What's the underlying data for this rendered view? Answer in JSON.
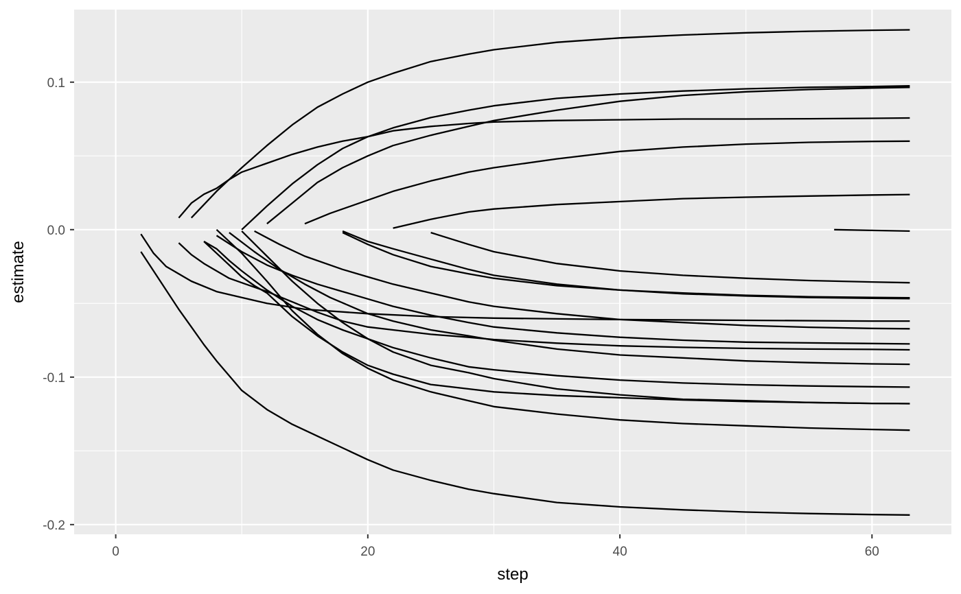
{
  "chart_data": {
    "type": "line",
    "title": "",
    "xlabel": "step",
    "ylabel": "estimate",
    "xlim": [
      -3.3,
      66.3
    ],
    "ylim": [
      -0.2066,
      0.1492
    ],
    "x_ticks": [
      0,
      20,
      40,
      60
    ],
    "x_tick_labels": [
      "0",
      "20",
      "40",
      "60"
    ],
    "x_minor_ticks": [
      10,
      30,
      50
    ],
    "y_ticks": [
      -0.2,
      -0.1,
      0.0,
      0.1
    ],
    "y_tick_labels": [
      "-0.2",
      "-0.1",
      "0.0",
      "0.1"
    ],
    "y_minor_ticks": [
      -0.15,
      -0.05,
      0.05
    ],
    "grid": true,
    "legend": "none",
    "colors": {
      "panel_background": "#ebebeb",
      "grid_line": "#ffffff",
      "series_line": "#000000",
      "tick_label": "#4d4d4d",
      "axis_title": "#000000"
    },
    "series": [
      {
        "x": [
          5,
          6,
          7,
          8,
          9,
          10,
          12,
          14,
          16,
          18,
          20,
          22,
          25,
          28,
          30,
          35,
          40,
          45,
          50,
          55,
          60,
          63
        ],
        "y": [
          0.008,
          0.018,
          0.024,
          0.028,
          0.034,
          0.039,
          0.045,
          0.051,
          0.056,
          0.06,
          0.063,
          0.067,
          0.07,
          0.072,
          0.073,
          0.074,
          0.0745,
          0.075,
          0.075,
          0.0752,
          0.0755,
          0.0757
        ]
      },
      {
        "x": [
          6,
          8,
          10,
          12,
          14,
          16,
          18,
          20,
          22,
          25,
          28,
          30,
          35,
          40,
          45,
          50,
          55,
          60,
          63
        ],
        "y": [
          0.008,
          0.026,
          0.042,
          0.057,
          0.071,
          0.083,
          0.092,
          0.1,
          0.106,
          0.114,
          0.119,
          0.122,
          0.127,
          0.13,
          0.132,
          0.1335,
          0.1345,
          0.1352,
          0.1355
        ]
      },
      {
        "x": [
          10,
          12,
          14,
          16,
          18,
          20,
          22,
          25,
          28,
          30,
          35,
          40,
          45,
          50,
          55,
          60,
          63
        ],
        "y": [
          0.0,
          0.016,
          0.031,
          0.044,
          0.055,
          0.063,
          0.069,
          0.076,
          0.081,
          0.084,
          0.089,
          0.092,
          0.094,
          0.0955,
          0.0965,
          0.097,
          0.0975
        ]
      },
      {
        "x": [
          12,
          14,
          16,
          18,
          20,
          22,
          25,
          28,
          30,
          35,
          40,
          45,
          50,
          55,
          60,
          63
        ],
        "y": [
          0.004,
          0.018,
          0.032,
          0.042,
          0.05,
          0.057,
          0.064,
          0.07,
          0.074,
          0.081,
          0.087,
          0.091,
          0.0935,
          0.095,
          0.096,
          0.0965
        ]
      },
      {
        "x": [
          15,
          17,
          20,
          22,
          25,
          28,
          30,
          35,
          40,
          45,
          50,
          55,
          60,
          63
        ],
        "y": [
          0.004,
          0.011,
          0.02,
          0.026,
          0.033,
          0.039,
          0.042,
          0.048,
          0.053,
          0.056,
          0.058,
          0.0592,
          0.0598,
          0.06
        ]
      },
      {
        "x": [
          22,
          25,
          28,
          30,
          35,
          40,
          45,
          50,
          55,
          60,
          63
        ],
        "y": [
          0.001,
          0.007,
          0.012,
          0.014,
          0.017,
          0.019,
          0.021,
          0.022,
          0.0228,
          0.0235,
          0.0238
        ]
      },
      {
        "x": [
          57,
          60,
          63
        ],
        "y": [
          0.0,
          -0.0005,
          -0.001
        ]
      },
      {
        "x": [
          25,
          28,
          30,
          35,
          40,
          45,
          50,
          55,
          60,
          63
        ],
        "y": [
          -0.002,
          -0.01,
          -0.015,
          -0.023,
          -0.028,
          -0.031,
          -0.033,
          -0.0345,
          -0.0355,
          -0.036
        ]
      },
      {
        "x": [
          18,
          20,
          22,
          25,
          28,
          30,
          35,
          40,
          45,
          50,
          55,
          60,
          63
        ],
        "y": [
          -0.001,
          -0.008,
          -0.013,
          -0.02,
          -0.027,
          -0.031,
          -0.037,
          -0.041,
          -0.043,
          -0.0445,
          -0.0455,
          -0.046,
          -0.0462
        ]
      },
      {
        "x": [
          18,
          20,
          22,
          25,
          28,
          30,
          35,
          40,
          45,
          50,
          55,
          60,
          63
        ],
        "y": [
          -0.002,
          -0.01,
          -0.017,
          -0.025,
          -0.03,
          -0.033,
          -0.038,
          -0.041,
          -0.0435,
          -0.045,
          -0.046,
          -0.0465,
          -0.0468
        ]
      },
      {
        "x": [
          2,
          3,
          4,
          6,
          8,
          10,
          12,
          15,
          20,
          25,
          30,
          40,
          50,
          60,
          63
        ],
        "y": [
          -0.003,
          -0.016,
          -0.025,
          -0.035,
          -0.042,
          -0.046,
          -0.05,
          -0.054,
          -0.057,
          -0.059,
          -0.06,
          -0.061,
          -0.0615,
          -0.062,
          -0.062
        ]
      },
      {
        "x": [
          11,
          13,
          15,
          18,
          20,
          22,
          25,
          28,
          30,
          35,
          40,
          45,
          50,
          55,
          60,
          63
        ],
        "y": [
          -0.001,
          -0.01,
          -0.018,
          -0.027,
          -0.032,
          -0.037,
          -0.043,
          -0.049,
          -0.052,
          -0.057,
          -0.061,
          -0.063,
          -0.065,
          -0.0662,
          -0.067,
          -0.0672
        ]
      },
      {
        "x": [
          8,
          10,
          12,
          14,
          16,
          18,
          20,
          22,
          25,
          28,
          30,
          35,
          40,
          45,
          50,
          55,
          60,
          63
        ],
        "y": [
          -0.004,
          -0.015,
          -0.024,
          -0.031,
          -0.037,
          -0.042,
          -0.047,
          -0.052,
          -0.058,
          -0.063,
          -0.066,
          -0.07,
          -0.073,
          -0.075,
          -0.0763,
          -0.0768,
          -0.0772,
          -0.0775
        ]
      },
      {
        "x": [
          5,
          6,
          7,
          8,
          9,
          10,
          12,
          14,
          16,
          18,
          20,
          22,
          25,
          28,
          30,
          35,
          40,
          45,
          50,
          55,
          60,
          63
        ],
        "y": [
          -0.009,
          -0.017,
          -0.023,
          -0.028,
          -0.033,
          -0.036,
          -0.042,
          -0.049,
          -0.056,
          -0.062,
          -0.066,
          -0.068,
          -0.071,
          -0.073,
          -0.0745,
          -0.077,
          -0.0788,
          -0.0798,
          -0.0805,
          -0.081,
          -0.0812,
          -0.0815
        ]
      },
      {
        "x": [
          9,
          11,
          13,
          15,
          17,
          20,
          22,
          25,
          28,
          30,
          35,
          40,
          45,
          50,
          55,
          60,
          63
        ],
        "y": [
          -0.002,
          -0.015,
          -0.027,
          -0.037,
          -0.046,
          -0.057,
          -0.062,
          -0.068,
          -0.072,
          -0.075,
          -0.081,
          -0.085,
          -0.087,
          -0.089,
          -0.0902,
          -0.091,
          -0.0913
        ]
      },
      {
        "x": [
          7,
          8,
          9,
          10,
          12,
          14,
          16,
          18,
          20,
          22,
          25,
          28,
          30,
          35,
          40,
          45,
          50,
          55,
          60,
          63
        ],
        "y": [
          -0.008,
          -0.013,
          -0.021,
          -0.028,
          -0.041,
          -0.052,
          -0.061,
          -0.068,
          -0.074,
          -0.08,
          -0.087,
          -0.093,
          -0.095,
          -0.099,
          -0.102,
          -0.104,
          -0.1052,
          -0.106,
          -0.1065,
          -0.1068
        ]
      },
      {
        "x": [
          10,
          12,
          14,
          16,
          18,
          20,
          22,
          25,
          28,
          30,
          35,
          40,
          45,
          50,
          55,
          60,
          63
        ],
        "y": [
          -0.001,
          -0.018,
          -0.035,
          -0.05,
          -0.063,
          -0.074,
          -0.083,
          -0.092,
          -0.097,
          -0.101,
          -0.108,
          -0.112,
          -0.115,
          -0.116,
          -0.1172,
          -0.1178,
          -0.118
        ]
      },
      {
        "x": [
          8,
          10,
          12,
          14,
          16,
          18,
          20,
          22,
          25,
          28,
          30,
          35,
          40,
          45,
          50,
          55,
          60,
          63
        ],
        "y": [
          0.0,
          -0.016,
          -0.035,
          -0.055,
          -0.071,
          -0.084,
          -0.094,
          -0.102,
          -0.11,
          -0.116,
          -0.12,
          -0.125,
          -0.129,
          -0.1315,
          -0.133,
          -0.1345,
          -0.1355,
          -0.136
        ]
      },
      {
        "x": [
          7,
          8,
          9,
          10,
          11,
          12,
          14,
          16,
          18,
          20,
          22,
          25,
          28,
          30,
          35,
          40,
          45,
          50,
          55,
          60,
          63
        ],
        "y": [
          -0.008,
          -0.016,
          -0.024,
          -0.032,
          -0.038,
          -0.043,
          -0.059,
          -0.072,
          -0.083,
          -0.092,
          -0.098,
          -0.105,
          -0.108,
          -0.11,
          -0.1125,
          -0.114,
          -0.1155,
          -0.1165,
          -0.1172,
          -0.1178,
          -0.118
        ]
      },
      {
        "x": [
          2,
          3,
          4,
          5,
          6,
          7,
          8,
          9,
          10,
          12,
          14,
          16,
          18,
          20,
          22,
          25,
          28,
          30,
          35,
          40,
          45,
          50,
          55,
          60,
          63
        ],
        "y": [
          -0.015,
          -0.028,
          -0.041,
          -0.054,
          -0.066,
          -0.078,
          -0.089,
          -0.099,
          -0.109,
          -0.122,
          -0.132,
          -0.14,
          -0.148,
          -0.156,
          -0.163,
          -0.17,
          -0.176,
          -0.179,
          -0.185,
          -0.188,
          -0.19,
          -0.1915,
          -0.1925,
          -0.1932,
          -0.1935
        ]
      }
    ]
  }
}
